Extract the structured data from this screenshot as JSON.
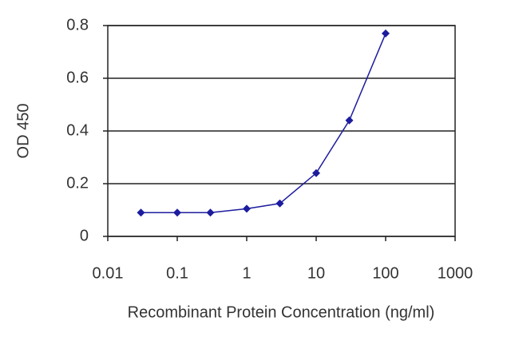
{
  "chart_data": {
    "type": "line",
    "x_label": "Recombinant Protein Concentration (ng/ml)",
    "y_label": "OD 450",
    "x": [
      0.03,
      0.1,
      0.3,
      1,
      3,
      10,
      30,
      100
    ],
    "values": [
      0.09,
      0.09,
      0.09,
      0.105,
      0.125,
      0.24,
      0.44,
      0.77
    ],
    "color": "#1c1c9e",
    "xscale": "log",
    "xlim": [
      0.01,
      1000
    ],
    "xticks": [
      0.01,
      0.1,
      1,
      10,
      100,
      1000
    ],
    "ylim": [
      0,
      0.8
    ],
    "yticks": [
      0,
      0.2,
      0.4,
      0.6,
      0.8
    ],
    "grid": true
  }
}
